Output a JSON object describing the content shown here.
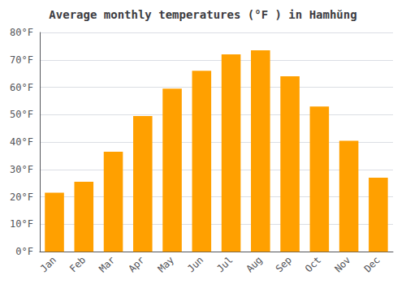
{
  "chart_data": {
    "type": "bar",
    "title": "Average monthly temperatures (°F ) in Hamhŭng",
    "categories": [
      "Jan",
      "Feb",
      "Mar",
      "Apr",
      "May",
      "Jun",
      "Jul",
      "Aug",
      "Sep",
      "Oct",
      "Nov",
      "Dec"
    ],
    "values": [
      21.5,
      25.5,
      36.5,
      49.5,
      59.5,
      66,
      72,
      73.5,
      64,
      53,
      40.5,
      27
    ],
    "color": "#FFA000",
    "ylim": [
      0,
      80
    ],
    "yticks": [
      {
        "value": 0,
        "label": "0°F"
      },
      {
        "value": 10,
        "label": "10°F"
      },
      {
        "value": 20,
        "label": "20°F"
      },
      {
        "value": 30,
        "label": "30°F"
      },
      {
        "value": 40,
        "label": "40°F"
      },
      {
        "value": 50,
        "label": "50°F"
      },
      {
        "value": 60,
        "label": "60°F"
      },
      {
        "value": 70,
        "label": "70°F"
      },
      {
        "value": 80,
        "label": "80°F"
      }
    ],
    "grid": true
  }
}
